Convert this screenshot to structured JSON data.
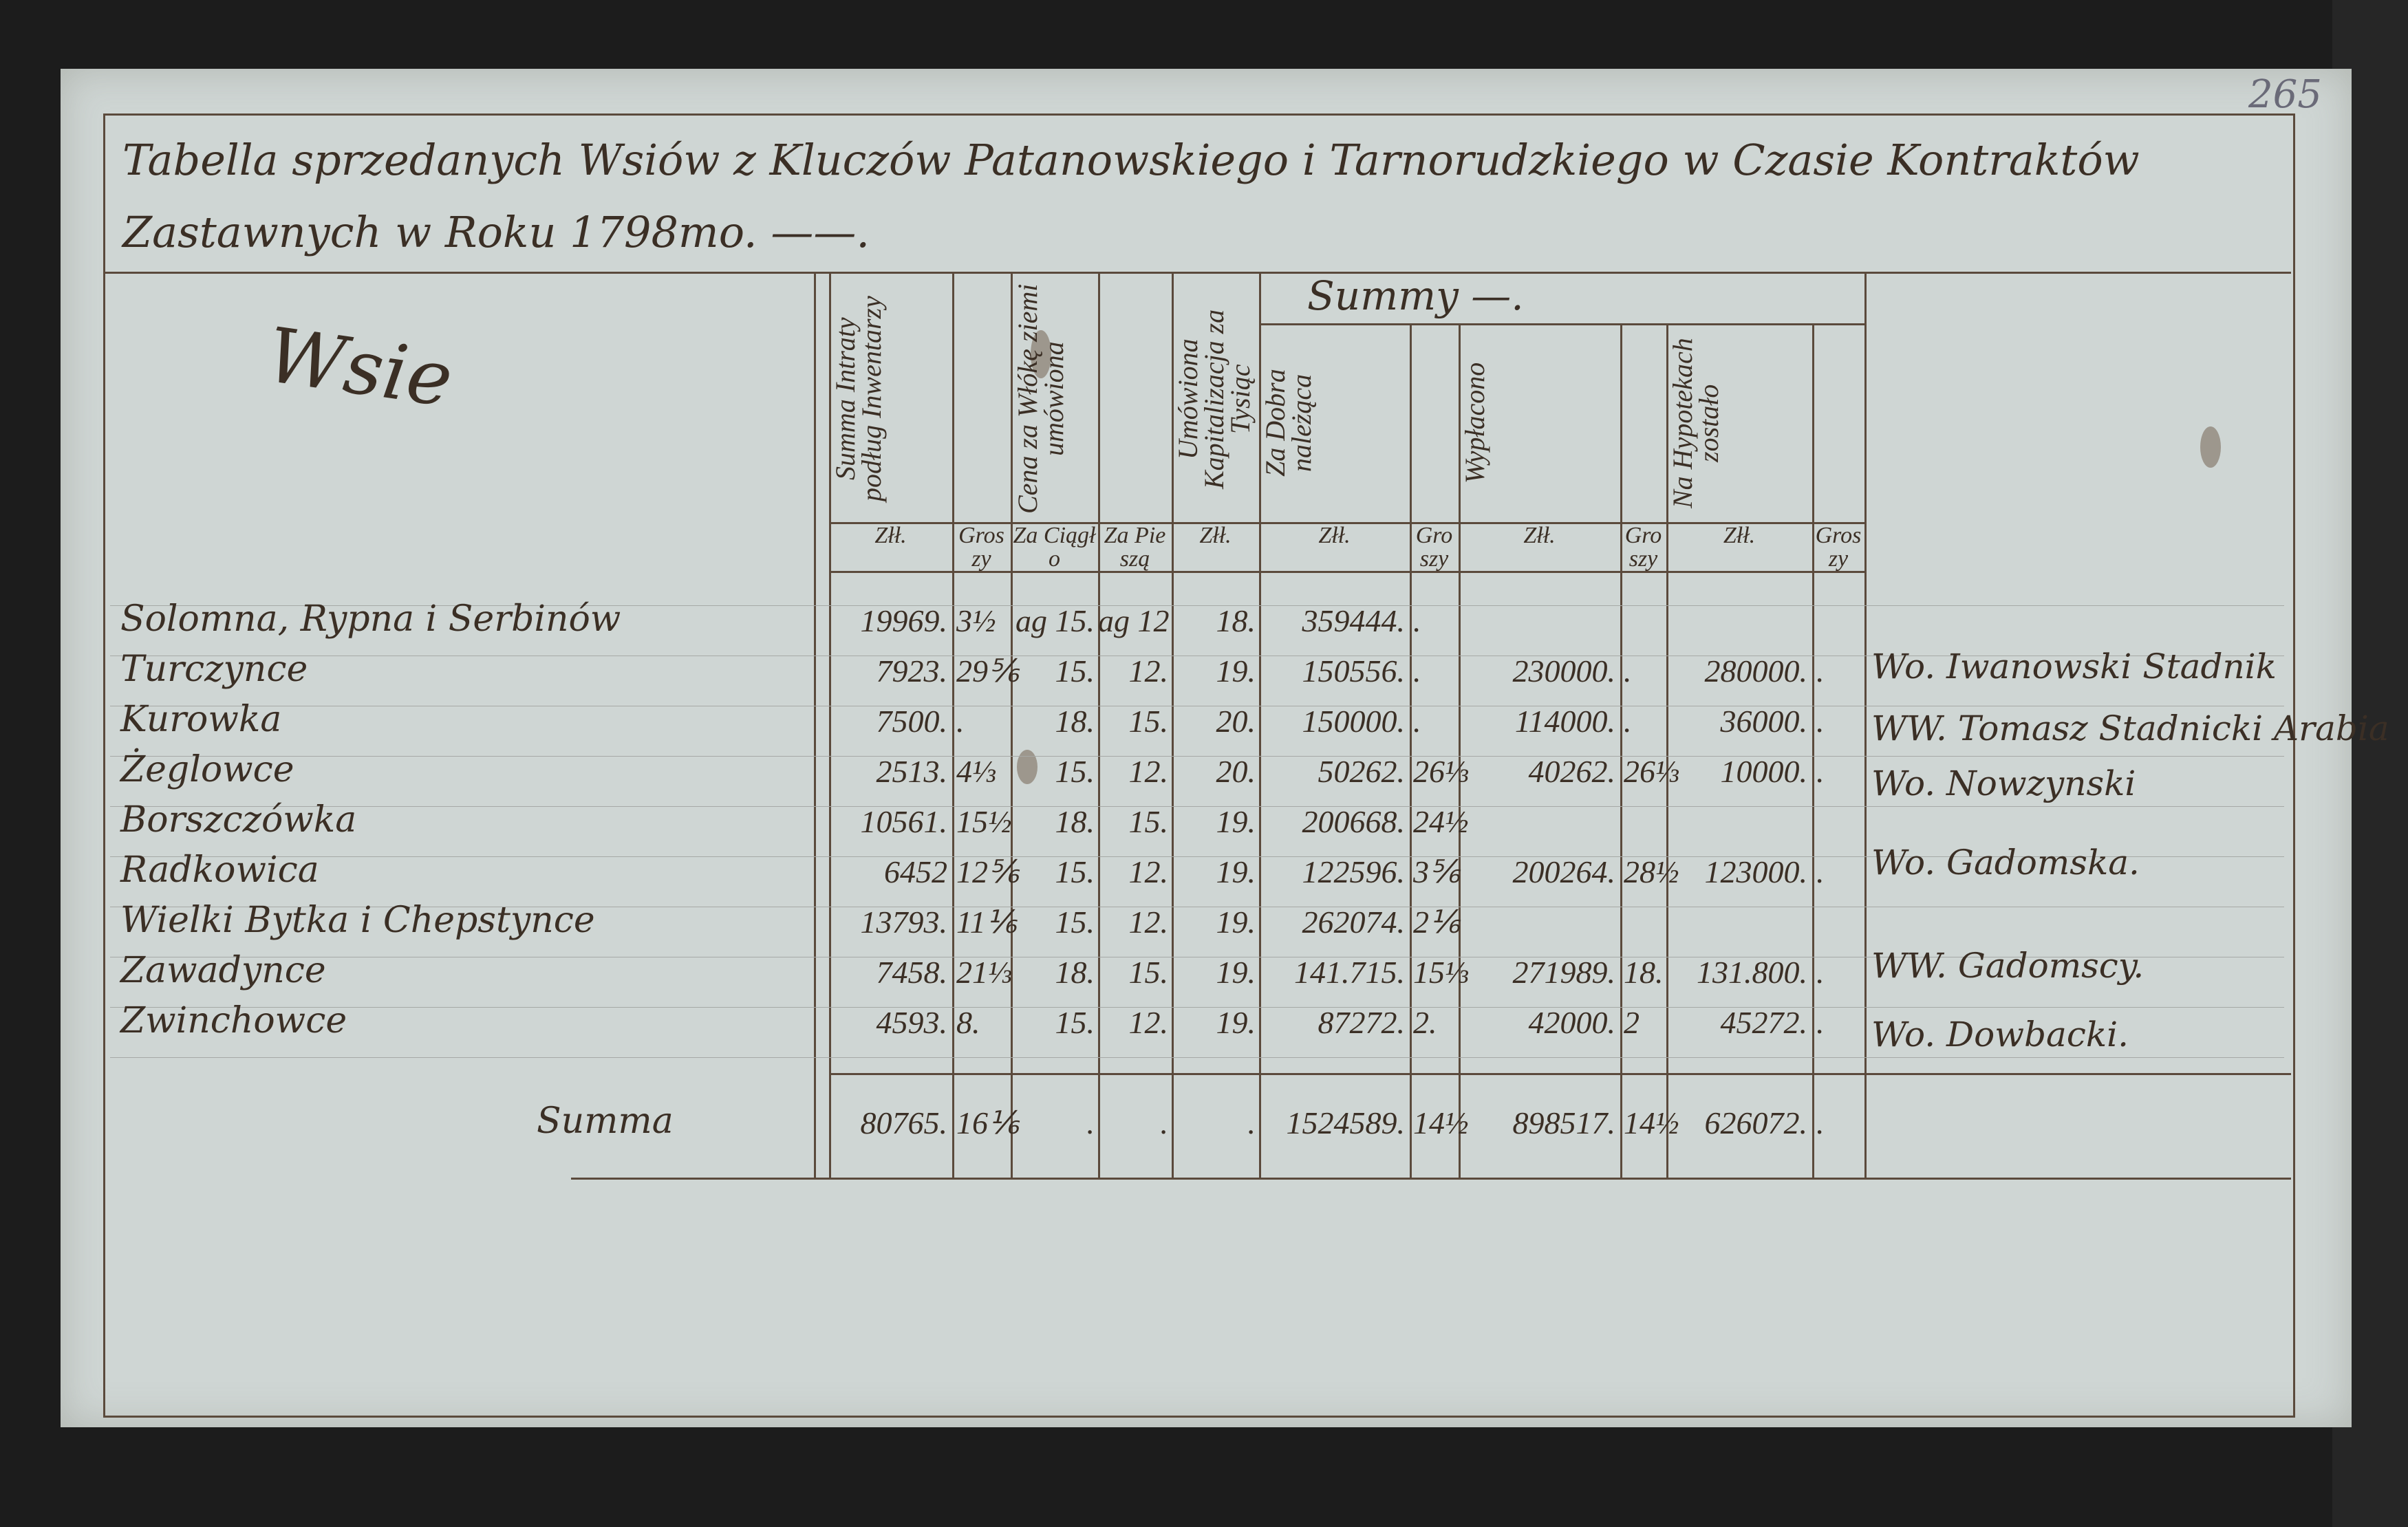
{
  "page_number": "265",
  "title": "Tabella sprzedanych Wsiów z Kluczów Patanowskiego i Tarnorudzkiego w Czasie Kontraktów Zastawnych w Roku 1798mo. ——.",
  "wsie_label": "Wsie",
  "headers": {
    "summa_intraty": "Summa Intraty podług Inwentarzy",
    "cena": "Cena za Włókę ziemi umówiona",
    "umowiona": "Umówiona Kapitalizacja za Tysiąc",
    "summy": "Summy —.",
    "za_dobra": "Za Dobra należąca",
    "wyplacono": "Wypłacono",
    "na_hypotekach": "Na Hypotekach zostało"
  },
  "units": [
    "Złł.",
    "Groszy",
    "Za Ciągło",
    "Za Pieszą",
    "Złł.",
    "Złł.",
    "Groszy",
    "Złł.",
    "Groszy",
    "Złł.",
    "Groszy"
  ],
  "rows": [
    {
      "name": "Solomna, Rypna i Serbinów",
      "intrata": "19969.",
      "gr": "3½",
      "ciaglo": "ag 15.",
      "piesza": "ag 12",
      "kap": "18.",
      "dobra": "359444.",
      "dgr": ".",
      "wypl": "",
      "wgr": "",
      "hyp": "",
      "hgr": ""
    },
    {
      "name": "Turczynce",
      "intrata": "7923.",
      "gr": "29⅚",
      "ciaglo": "15.",
      "piesza": "12.",
      "kap": "19.",
      "dobra": "150556.",
      "dgr": ".",
      "wypl": "230000.",
      "wgr": ".",
      "hyp": "280000.",
      "hgr": "."
    },
    {
      "name": "Kurowka",
      "intrata": "7500.",
      "gr": ".",
      "ciaglo": "18.",
      "piesza": "15.",
      "kap": "20.",
      "dobra": "150000.",
      "dgr": ".",
      "wypl": "114000.",
      "wgr": ".",
      "hyp": "36000.",
      "hgr": "."
    },
    {
      "name": "Żeglowce",
      "intrata": "2513.",
      "gr": "4⅓",
      "ciaglo": "15.",
      "piesza": "12.",
      "kap": "20.",
      "dobra": "50262.",
      "dgr": "26⅓",
      "wypl": "40262.",
      "wgr": "26⅓",
      "hyp": "10000.",
      "hgr": "."
    },
    {
      "name": "Borszczówka",
      "intrata": "10561.",
      "gr": "15½",
      "ciaglo": "18.",
      "piesza": "15.",
      "kap": "19.",
      "dobra": "200668.",
      "dgr": "24½",
      "wypl": "",
      "wgr": "",
      "hyp": "",
      "hgr": ""
    },
    {
      "name": "Radkowica",
      "intrata": "6452",
      "gr": "12⅚",
      "ciaglo": "15.",
      "piesza": "12.",
      "kap": "19.",
      "dobra": "122596.",
      "dgr": "3⅚",
      "wypl": "200264.",
      "wgr": "28½",
      "hyp": "123000.",
      "hgr": "."
    },
    {
      "name": "Wielki Bytka i Chepstynce",
      "intrata": "13793.",
      "gr": "11⅙",
      "ciaglo": "15.",
      "piesza": "12.",
      "kap": "19.",
      "dobra": "262074.",
      "dgr": "2⅙",
      "wypl": "",
      "wgr": "",
      "hyp": "",
      "hgr": ""
    },
    {
      "name": "Zawadynce",
      "intrata": "7458.",
      "gr": "21⅓",
      "ciaglo": "18.",
      "piesza": "15.",
      "kap": "19.",
      "dobra": "141.715.",
      "dgr": "15⅓",
      "wypl": "271989.",
      "wgr": "18.",
      "hyp": "131.800.",
      "hgr": "."
    },
    {
      "name": "Zwinchowce",
      "intrata": "4593.",
      "gr": "8.",
      "ciaglo": "15.",
      "piesza": "12.",
      "kap": "19.",
      "dobra": "87272.",
      "dgr": "2.",
      "wypl": "42000.",
      "wgr": "2",
      "hyp": "45272.",
      "hgr": "."
    }
  ],
  "summa": {
    "label": "Summa",
    "intrata": "80765.",
    "gr": "16⅙",
    "ciaglo": ".",
    "piesza": ".",
    "kap": ".",
    "dobra": "1524589.",
    "dgr": "14½",
    "wypl": "898517.",
    "wgr": "14½",
    "hyp": "626072.",
    "hgr": "."
  },
  "buyers": [
    "Wo. Iwanowski Stadnik",
    "WW. Tomasz Stadnicki Arabia",
    "Wo. Nowzynski",
    "Wo. Gadomska.",
    "WW. Gadomscy.",
    "Wo. Dowbacki."
  ]
}
